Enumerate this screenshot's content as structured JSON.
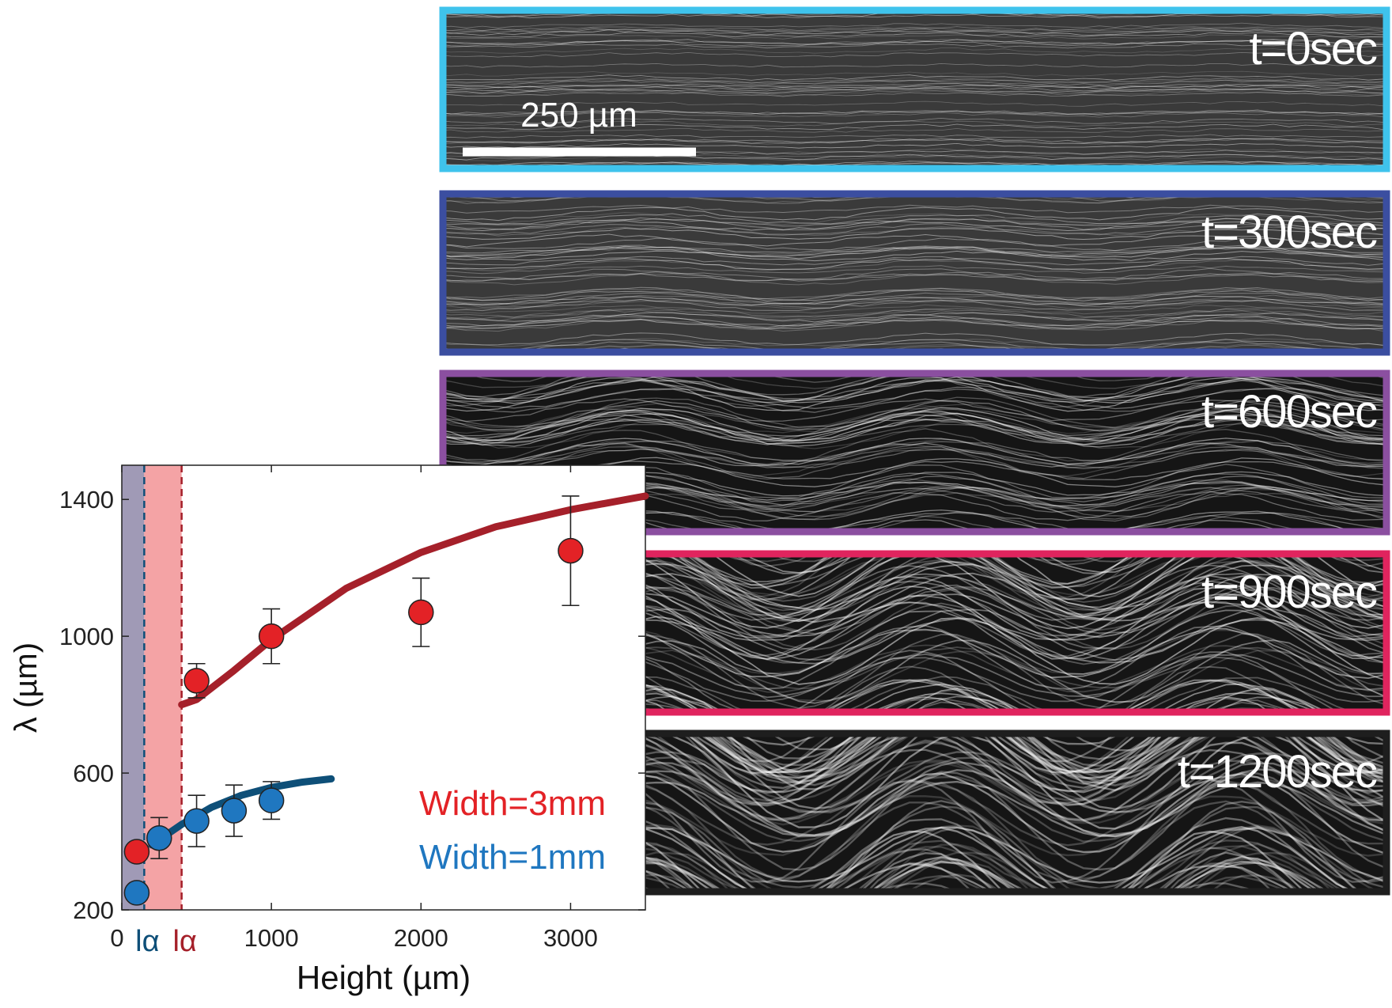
{
  "chart_data": {
    "type": "scatter",
    "xlabel": "Height (µm)",
    "ylabel": "λ (µm)",
    "xlim": [
      0,
      3500
    ],
    "xticks": [
      0,
      1000,
      2000,
      3000
    ],
    "ylim": [
      200,
      1500
    ],
    "yticks": [
      200,
      600,
      1000,
      1400
    ],
    "series": [
      {
        "name": "Width=3mm",
        "color": "#e32226",
        "x": [
          100,
          500,
          1000,
          2000,
          3000
        ],
        "values": [
          370,
          870,
          1000,
          1070,
          1250
        ],
        "errors": [
          null,
          50,
          80,
          100,
          160
        ]
      },
      {
        "name": "Width=1mm",
        "color": "#1f77c0",
        "x": [
          100,
          250,
          500,
          750,
          1000
        ],
        "values": [
          250,
          410,
          460,
          490,
          520
        ],
        "errors": [
          null,
          60,
          75,
          75,
          55
        ]
      }
    ],
    "fits": [
      {
        "color": "#a5202a",
        "x": [
          400,
          500,
          750,
          1000,
          1500,
          2000,
          2500,
          3000,
          3500
        ],
        "values": [
          800,
          815,
          900,
          990,
          1140,
          1245,
          1320,
          1370,
          1410
        ]
      },
      {
        "color": "#0e4f78",
        "x": [
          200,
          400,
          600,
          800,
          1000,
          1200,
          1400
        ],
        "values": [
          390,
          450,
          500,
          535,
          558,
          573,
          583
        ]
      }
    ],
    "regions": [
      {
        "from": 0,
        "to": 150,
        "color": "#a09ab6"
      },
      {
        "from": 150,
        "to": 400,
        "color": "#f4a3a5"
      }
    ],
    "markers": [
      {
        "x": 150,
        "label": "lα",
        "color": "#0e4f78"
      },
      {
        "x": 400,
        "label": "lα",
        "color": "#a5202a"
      }
    ]
  },
  "panels": {
    "scale_bar": "250 µm",
    "items": [
      {
        "label": "t=0sec",
        "color": "#3fc3ec"
      },
      {
        "label": "t=300sec",
        "color": "#3b4ea0"
      },
      {
        "label": "t=600sec",
        "color": "#8b4fa0"
      },
      {
        "label": "t=900sec",
        "color": "#e0245e"
      },
      {
        "label": "t=1200sec",
        "color": "#1e1e1e"
      }
    ]
  }
}
